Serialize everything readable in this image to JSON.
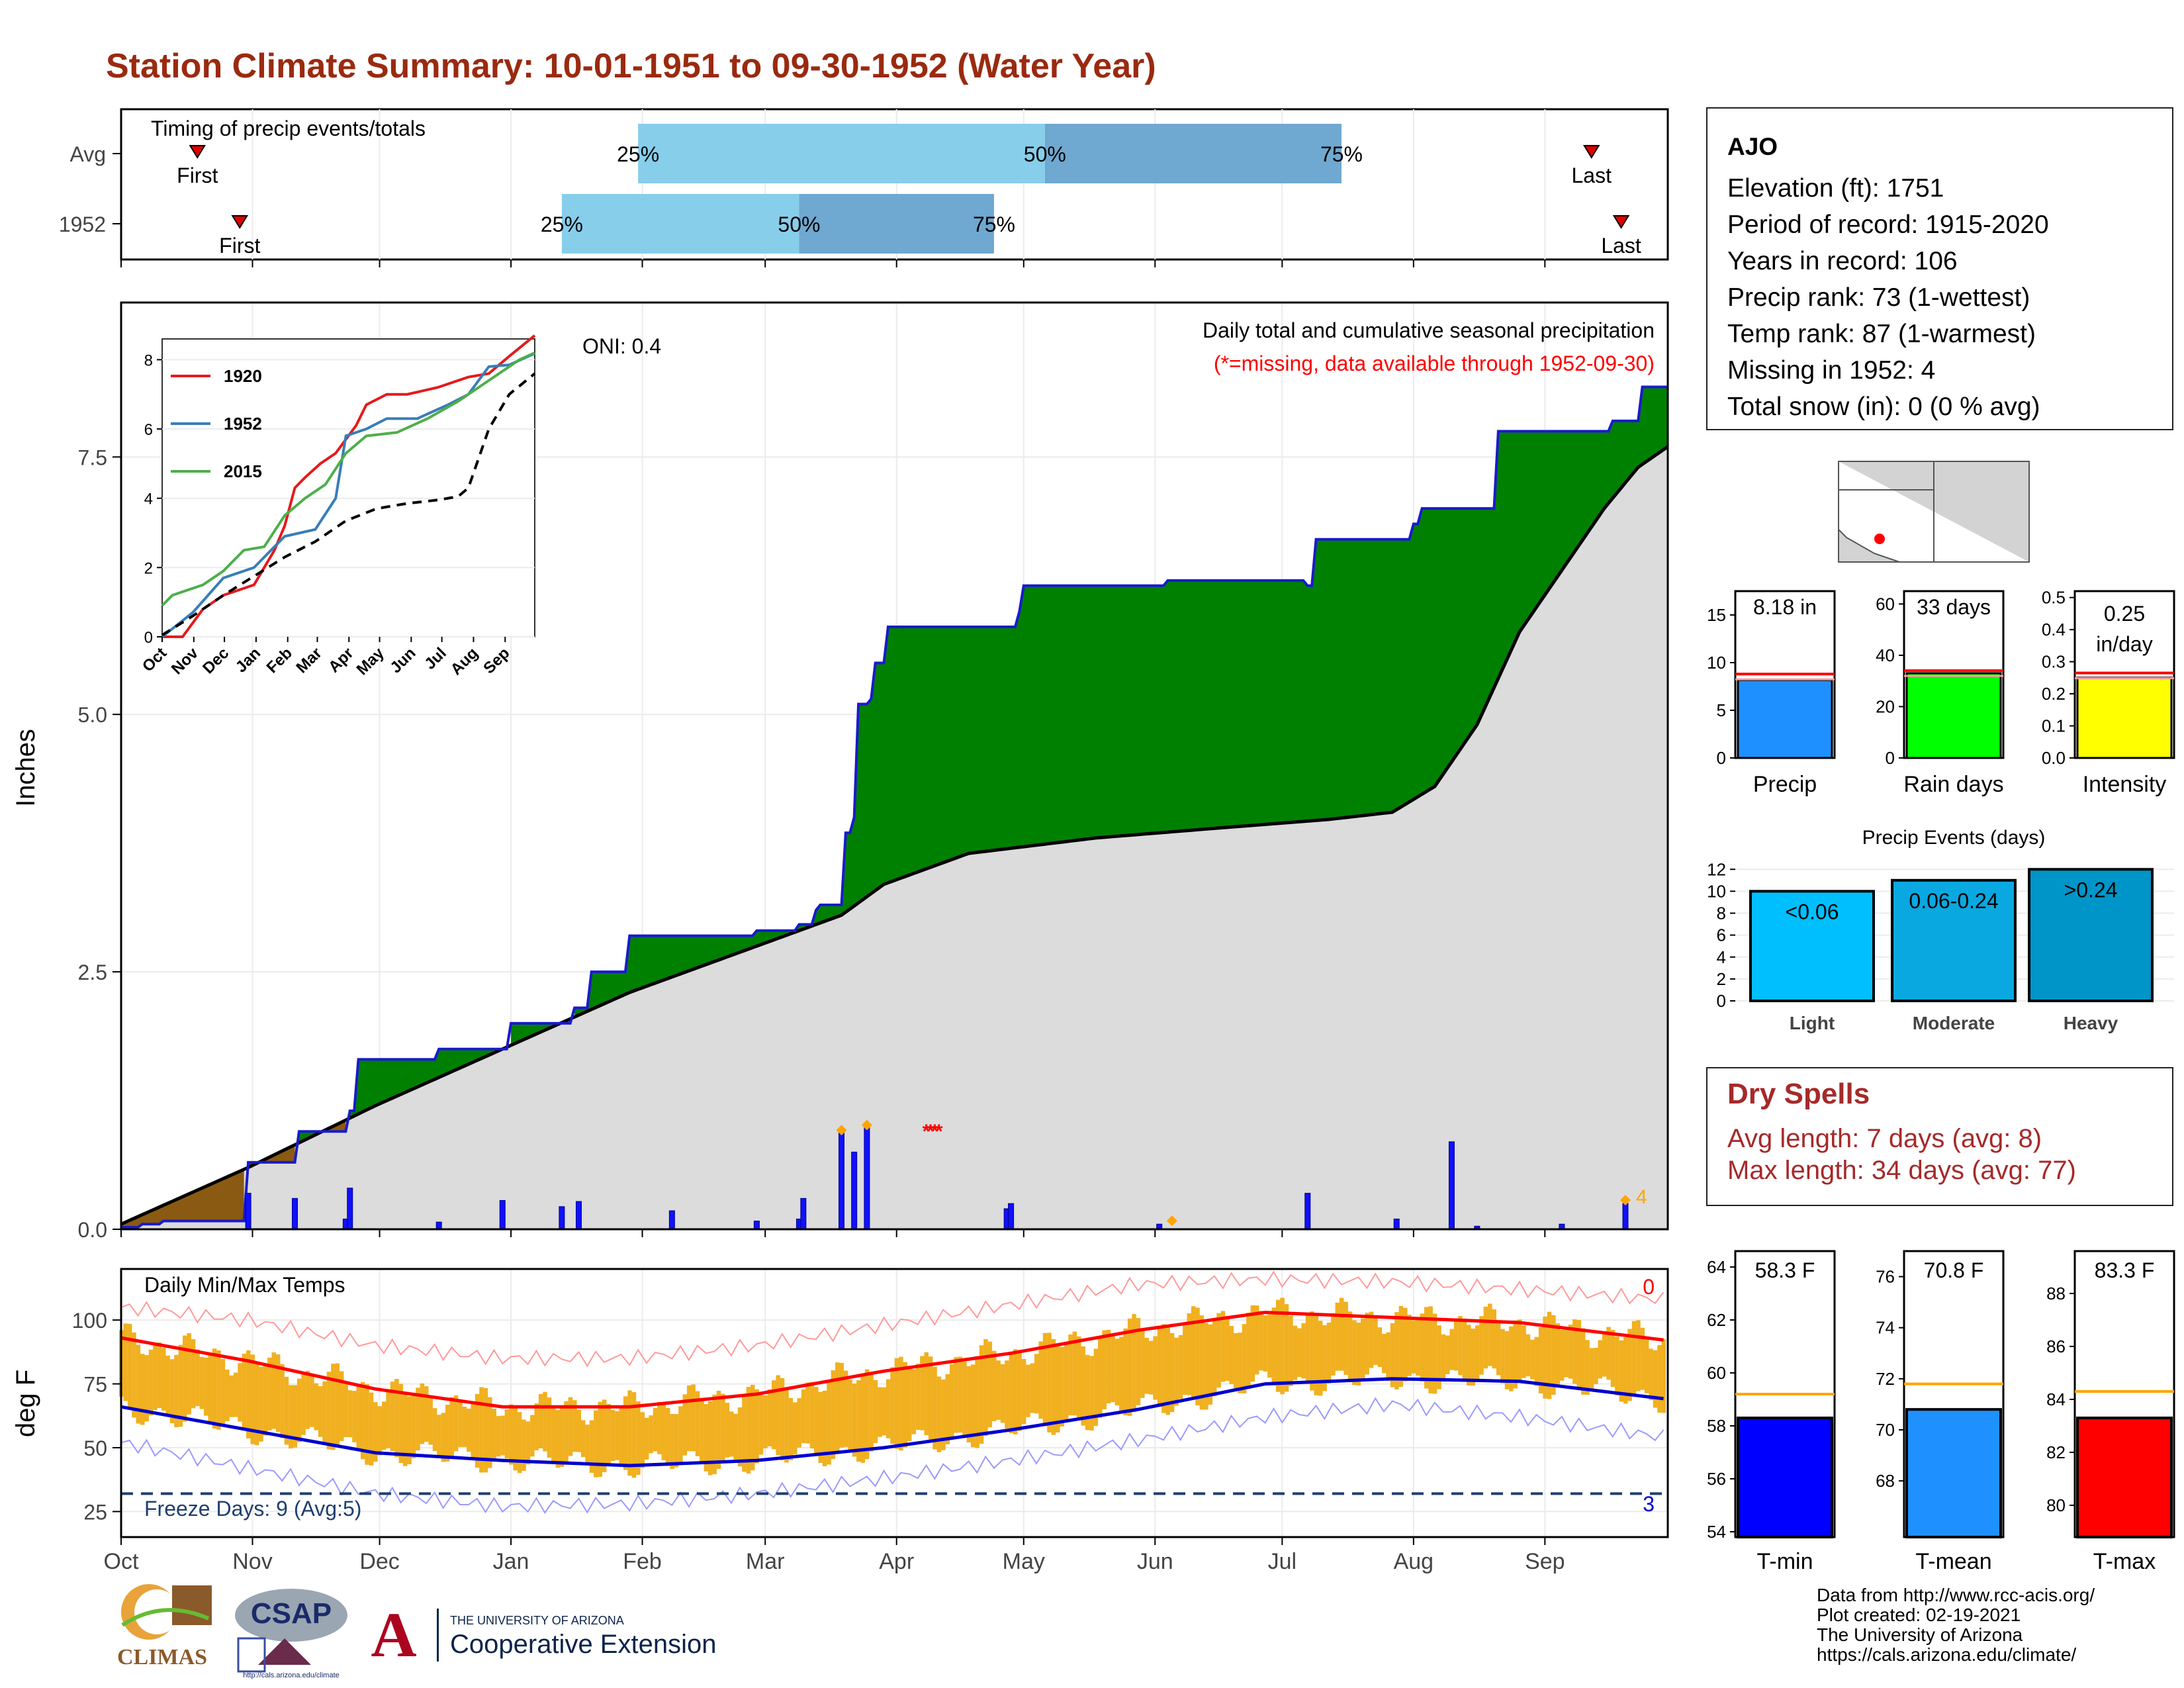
{
  "title": "Station Climate Summary: 10-01-1951 to 09-30-1952 (Water Year)",
  "colors": {
    "title": "#9a2a10",
    "bar_q1": "#87ceeb",
    "bar_q2": "#6fa8d0",
    "cum_obs": "#1a1acd",
    "above_avg": "#008000",
    "below_avg": "#8b5a12",
    "avg_fill": "#dcdcdc",
    "tmax_line": "#ff0000",
    "tmin_line": "#0000cd",
    "daily_temp_bar": "#f0b020",
    "freeze_line": "#1f3f6f",
    "dry_spell_text": "#a52a2a"
  },
  "timing": {
    "title": "Timing of precip events/totals",
    "rows": [
      {
        "label": "Avg",
        "first": "First",
        "last": "Last",
        "q25": "25%",
        "q50": "50%",
        "q75": "75%",
        "first_day": 18,
        "last_day": 347,
        "q25_day": 122,
        "q50_day": 218,
        "q75_day": 288
      },
      {
        "label": "1952",
        "first": "First",
        "last": "Last",
        "q25": "25%",
        "q50": "50%",
        "q75": "75%",
        "first_day": 28,
        "last_day": 354,
        "q25_day": 104,
        "q50_day": 160,
        "q75_day": 206
      }
    ]
  },
  "precip_panel": {
    "ylabel": "Inches",
    "oni": "ONI: 0.4",
    "subtitle": "Daily total and cumulative seasonal precipitation",
    "missing_note": "(*=missing, data available through 1952-09-30)",
    "missing_count": "4",
    "y_ticks": [
      "0.0",
      "2.5",
      "5.0",
      "7.5"
    ],
    "ylim": [
      0,
      9.0
    ]
  },
  "inset": {
    "legend": [
      "1920",
      "1952",
      "2015"
    ],
    "y_ticks": [
      "0",
      "2",
      "4",
      "6",
      "8"
    ],
    "x_ticks": [
      "Oct",
      "Nov",
      "Dec",
      "Jan",
      "Feb",
      "Mar",
      "Apr",
      "May",
      "Jun",
      "Jul",
      "Aug",
      "Sep"
    ],
    "series_colors": [
      "#e41a1c",
      "#377eb8",
      "#4daf4a"
    ]
  },
  "temp_panel": {
    "ylabel": "deg F",
    "title": "Daily Min/Max Temps",
    "freeze_text": "Freeze Days: 9 (Avg:5)",
    "top_count": "0",
    "bottom_count": "3",
    "y_ticks": [
      "25",
      "50",
      "75",
      "100"
    ],
    "ylim": [
      15,
      120
    ]
  },
  "months": [
    "Oct",
    "Nov",
    "Dec",
    "Jan",
    "Feb",
    "Mar",
    "Apr",
    "May",
    "Jun",
    "Jul",
    "Aug",
    "Sep"
  ],
  "station": {
    "name": "AJO",
    "lines": [
      "Elevation (ft): 1751",
      "Period of record: 1915-2020",
      "Years in record: 106",
      "Precip rank: 73 (1-wettest)",
      "Temp rank: 87 (1-warmest)",
      "Missing in 1952: 4",
      "Total snow (in): 0 (0 % avg)"
    ]
  },
  "mini_bars": [
    {
      "label": "Precip",
      "value_text": "8.18 in",
      "value": 8.18,
      "avg": 8.8,
      "ymax": 17.5,
      "ticks": [
        0,
        5,
        10,
        15
      ],
      "color": "#1e90ff"
    },
    {
      "label": "Rain days",
      "value_text": "33 days",
      "value": 33,
      "avg": 34,
      "ymax": 65,
      "ticks": [
        0,
        20,
        40,
        60
      ],
      "color": "#00ff00"
    },
    {
      "label": "Intensity",
      "value_text": "0.25 in/day",
      "value_line1": "0.25",
      "value_line2": "in/day",
      "value": 0.25,
      "avg": 0.265,
      "ymax": 0.52,
      "ticks": [
        0.0,
        0.1,
        0.2,
        0.3,
        0.4,
        0.5
      ],
      "tick_labels": [
        "0.0",
        "0.1",
        "0.2",
        "0.3",
        "0.4",
        "0.5"
      ],
      "color": "#ffff00"
    }
  ],
  "precip_events": {
    "title": "Precip Events (days)",
    "categories": [
      "Light",
      "Moderate",
      "Heavy"
    ],
    "bar_labels": [
      "<0.06",
      "0.06-0.24",
      ">0.24"
    ],
    "values": [
      10,
      11,
      12
    ],
    "ticks": [
      0,
      2,
      4,
      6,
      8,
      10,
      12
    ],
    "colors": [
      "#00bfff",
      "#0aa8e0",
      "#0095c8"
    ]
  },
  "dry_spells": {
    "title": "Dry Spells",
    "avg_length": "Avg length: 7 days (avg: 8)",
    "max_length": "Max length: 34 days (avg: 77)"
  },
  "temp_bars": [
    {
      "label": "T-min",
      "value_text": "58.3 F",
      "value": 58.3,
      "avg": 59.2,
      "ymin": 53.8,
      "ymax": 64.6,
      "ticks": [
        54,
        56,
        58,
        60,
        62,
        64
      ],
      "color": "#0000ff"
    },
    {
      "label": "T-mean",
      "value_text": "70.8 F",
      "value": 70.8,
      "avg": 71.8,
      "ymin": 65.8,
      "ymax": 77.0,
      "ticks": [
        68,
        70,
        72,
        74,
        76
      ],
      "color": "#1e90ff"
    },
    {
      "label": "T-max",
      "value_text": "83.3 F",
      "value": 83.3,
      "avg": 84.3,
      "ymin": 78.8,
      "ymax": 89.6,
      "ticks": [
        80,
        82,
        84,
        86,
        88
      ],
      "color": "#ff0000"
    }
  ],
  "footer": {
    "lines": [
      "Data from http://www.rcc-acis.org/",
      "Plot created: 02-19-2021",
      "The University of Arizona",
      "https://cals.arizona.edu/climate/"
    ]
  },
  "logos": {
    "climas": "CLIMAS",
    "csap": "CSAP",
    "csap_url": "http://cals.arizona.edu/climate",
    "ua_small": "THE UNIVERSITY OF ARIZONA",
    "ua_big": "Cooperative Extension",
    "ua_letter": "A"
  },
  "chart_data": [
    {
      "type": "area",
      "name": "Cumulative seasonal precipitation",
      "x_unit": "day of water year",
      "observed_steps": [
        [
          0,
          0.02
        ],
        [
          5,
          0.05
        ],
        [
          10,
          0.08
        ],
        [
          30,
          0.65
        ],
        [
          42,
          0.95
        ],
        [
          54,
          1.15
        ],
        [
          56,
          1.65
        ],
        [
          75,
          1.75
        ],
        [
          92,
          2.0
        ],
        [
          107,
          2.15
        ],
        [
          111,
          2.5
        ],
        [
          120,
          2.85
        ],
        [
          135,
          2.85
        ],
        [
          150,
          2.9
        ],
        [
          160,
          2.96
        ],
        [
          164,
          3.1
        ],
        [
          165,
          3.15
        ],
        [
          171,
          3.85
        ],
        [
          173,
          4.0
        ],
        [
          174,
          5.1
        ],
        [
          177,
          5.15
        ],
        [
          178,
          5.5
        ],
        [
          181,
          5.85
        ],
        [
          212,
          6.0
        ],
        [
          213,
          6.25
        ],
        [
          247,
          6.3
        ],
        [
          280,
          6.25
        ],
        [
          282,
          6.7
        ],
        [
          305,
          6.85
        ],
        [
          307,
          7.0
        ],
        [
          325,
          7.75
        ],
        [
          352,
          7.85
        ],
        [
          359,
          8.18
        ],
        [
          365,
          8.18
        ]
      ],
      "average_curve": [
        [
          0,
          0.05
        ],
        [
          30,
          0.6
        ],
        [
          60,
          1.2
        ],
        [
          90,
          1.75
        ],
        [
          120,
          2.3
        ],
        [
          150,
          2.75
        ],
        [
          170,
          3.05
        ],
        [
          180,
          3.35
        ],
        [
          200,
          3.65
        ],
        [
          230,
          3.8
        ],
        [
          260,
          3.9
        ],
        [
          285,
          3.98
        ],
        [
          300,
          4.05
        ],
        [
          310,
          4.3
        ],
        [
          320,
          4.9
        ],
        [
          330,
          5.8
        ],
        [
          340,
          6.4
        ],
        [
          350,
          7.0
        ],
        [
          358,
          7.4
        ],
        [
          365,
          7.6
        ]
      ],
      "daily_bars": [
        [
          30,
          0.35
        ],
        [
          41,
          0.3
        ],
        [
          53,
          0.1
        ],
        [
          54,
          0.4
        ],
        [
          75,
          0.07
        ],
        [
          90,
          0.28
        ],
        [
          104,
          0.22
        ],
        [
          108,
          0.27
        ],
        [
          130,
          0.18
        ],
        [
          150,
          0.08
        ],
        [
          160,
          0.1
        ],
        [
          161,
          0.3
        ],
        [
          170,
          0.95
        ],
        [
          173,
          0.75
        ],
        [
          176,
          1.0
        ],
        [
          209,
          0.2
        ],
        [
          210,
          0.25
        ],
        [
          245,
          0.05
        ],
        [
          280,
          0.35
        ],
        [
          301,
          0.1
        ],
        [
          314,
          0.85
        ],
        [
          320,
          0.03
        ],
        [
          340,
          0.05
        ],
        [
          355,
          0.25
        ]
      ],
      "missing_days": [
        190,
        193
      ],
      "ylim": [
        0,
        9.0
      ]
    },
    {
      "type": "line",
      "name": "Cumulative precip inset",
      "series": [
        {
          "name": "1920",
          "x": [
            0,
            20,
            40,
            60,
            90,
            110,
            120,
            130,
            140,
            155,
            170,
            190,
            200,
            220,
            240,
            270,
            300,
            320,
            340,
            365
          ],
          "values": [
            0,
            0,
            0.8,
            1.2,
            1.5,
            2.5,
            3.2,
            4.3,
            4.6,
            5.0,
            5.3,
            6.1,
            6.7,
            7.0,
            7.0,
            7.2,
            7.5,
            7.6,
            8.1,
            8.7
          ]
        },
        {
          "name": "1952",
          "x": [
            0,
            30,
            60,
            90,
            120,
            150,
            170,
            180,
            200,
            220,
            250,
            280,
            300,
            320,
            340,
            365
          ],
          "values": [
            0,
            0.7,
            1.7,
            2.0,
            2.9,
            3.1,
            4.0,
            5.8,
            6.0,
            6.3,
            6.3,
            6.7,
            7.0,
            7.8,
            7.85,
            8.18
          ]
        },
        {
          "name": "2015",
          "x": [
            0,
            10,
            40,
            60,
            80,
            100,
            120,
            140,
            160,
            180,
            200,
            230,
            260,
            290,
            310,
            330,
            350,
            365
          ],
          "values": [
            0.9,
            1.2,
            1.5,
            1.9,
            2.5,
            2.6,
            3.5,
            4.0,
            4.4,
            5.3,
            5.8,
            5.9,
            6.3,
            6.8,
            7.2,
            7.6,
            8.0,
            8.2
          ]
        },
        {
          "name": "Average",
          "x": [
            0,
            30,
            60,
            90,
            120,
            150,
            180,
            210,
            240,
            270,
            290,
            300,
            320,
            340,
            365
          ],
          "values": [
            0.05,
            0.6,
            1.2,
            1.75,
            2.3,
            2.75,
            3.35,
            3.7,
            3.85,
            3.95,
            4.05,
            4.3,
            6.0,
            7.0,
            7.6
          ]
        }
      ],
      "ylim": [
        0,
        8.6
      ]
    },
    {
      "type": "line",
      "name": "Daily Min/Max Temps",
      "x_unit": "day of water year",
      "series": [
        {
          "name": "Avg max",
          "x": [
            0,
            30,
            60,
            90,
            120,
            150,
            180,
            210,
            240,
            270,
            300,
            330,
            350,
            365
          ],
          "values": [
            93,
            84,
            73,
            66,
            66,
            71,
            80,
            87,
            96,
            103,
            101,
            99,
            95,
            92
          ]
        },
        {
          "name": "Avg min",
          "x": [
            0,
            30,
            60,
            90,
            120,
            150,
            180,
            210,
            240,
            270,
            300,
            330,
            350,
            365
          ],
          "values": [
            66,
            57,
            48,
            45,
            43,
            45,
            50,
            57,
            65,
            75,
            77,
            76,
            72,
            69
          ]
        },
        {
          "name": "Record max",
          "x": [
            0,
            30,
            60,
            90,
            120,
            150,
            180,
            210,
            240,
            270,
            300,
            330,
            365
          ],
          "values": [
            105,
            100,
            90,
            85,
            85,
            90,
            98,
            106,
            114,
            116,
            115,
            112,
            108
          ]
        },
        {
          "name": "Record min",
          "x": [
            0,
            30,
            60,
            90,
            120,
            150,
            180,
            210,
            240,
            270,
            300,
            330,
            365
          ],
          "values": [
            52,
            42,
            32,
            27,
            28,
            32,
            38,
            45,
            53,
            62,
            67,
            62,
            54
          ]
        }
      ],
      "freeze_line": 32,
      "ylim": [
        15,
        120
      ]
    }
  ]
}
